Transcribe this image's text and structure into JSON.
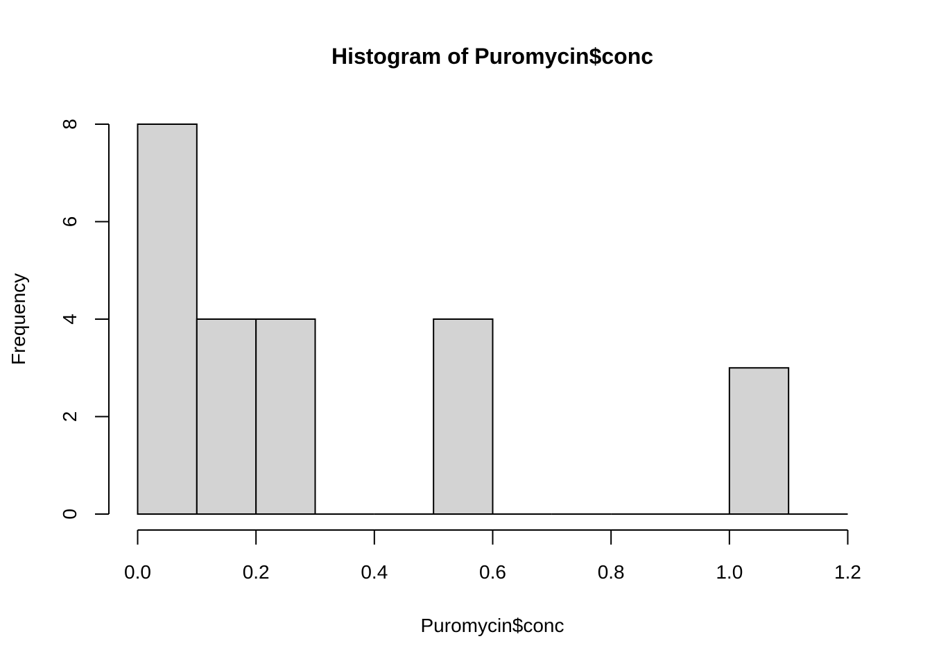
{
  "chart_data": {
    "type": "bar",
    "title": "Histogram of Puromycin$conc",
    "xlabel": "Puromycin$conc",
    "ylabel": "Frequency",
    "bin_edges": [
      0.0,
      0.1,
      0.2,
      0.3,
      0.4,
      0.5,
      0.6,
      0.7,
      0.8,
      0.9,
      1.0,
      1.1,
      1.2
    ],
    "values": [
      8,
      4,
      4,
      0,
      0,
      4,
      0,
      0,
      0,
      0,
      3,
      0
    ],
    "xlim": [
      0.0,
      1.2
    ],
    "ylim": [
      0,
      8
    ],
    "xticks": [
      "0.0",
      "0.2",
      "0.4",
      "0.6",
      "0.8",
      "1.0",
      "1.2"
    ],
    "yticks": [
      "0",
      "2",
      "4",
      "6",
      "8"
    ],
    "grid": false,
    "bar_fill": "#d3d3d3",
    "bar_stroke": "#000000"
  }
}
